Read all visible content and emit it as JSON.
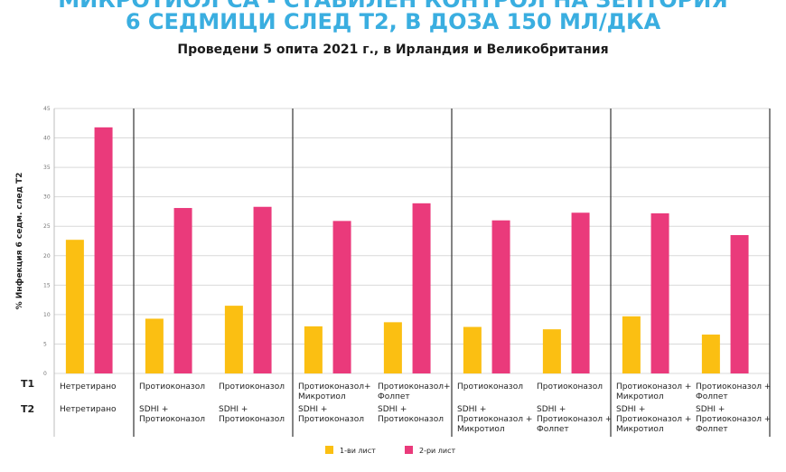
{
  "chart_data": {
    "type": "bar",
    "title_line1": "МИКРОТИОЛ СА - СТАБИЛЕН КОНТРОЛ НА ЗЕПТОРИЯ",
    "title_line2": "6 СЕДМИЦИ СЛЕД Т2, В ДОЗА 150 МЛ/ДКА",
    "subtitle": "Проведени 5 опита 2021 г., в Ирландия и Великобритания",
    "ylabel": "% Инфекция 6 седм. след Т2",
    "ylim": [
      0,
      45
    ],
    "yticks": [
      "0",
      "5",
      "10",
      "15",
      "20",
      "25",
      "30",
      "35",
      "40",
      "45"
    ],
    "row_labels": [
      "Т1",
      "Т2"
    ],
    "categories": [
      {
        "t1": [
          "Нетретирано"
        ],
        "t2": [
          "Нетретирано"
        ]
      },
      {
        "t1": [
          "Протиоконазол"
        ],
        "t2": [
          "SDHI +",
          "Протиоконазол"
        ]
      },
      {
        "t1": [
          "Протиоконазол"
        ],
        "t2": [
          "SDHI +",
          "Протиоконазол"
        ]
      },
      {
        "t1": [
          "Протиоконазол+",
          "Микротиол"
        ],
        "t2": [
          "SDHI +",
          "Протиоконазол"
        ]
      },
      {
        "t1": [
          "Протиоконазол+",
          "Фолпет"
        ],
        "t2": [
          "SDHI +",
          "Протиоконазол"
        ]
      },
      {
        "t1": [
          "Протиоконазол"
        ],
        "t2": [
          "SDHI +",
          "Протиоконазол +",
          "Микротиол"
        ]
      },
      {
        "t1": [
          "Протиоконазол"
        ],
        "t2": [
          "SDHI +",
          "Протиоконазол +",
          "Фолпет"
        ]
      },
      {
        "t1": [
          "Протиоконазол +",
          "Микротиол"
        ],
        "t2": [
          "SDHI +",
          "Протиоконазол +",
          "Микротиол"
        ]
      },
      {
        "t1": [
          "Протиоконазол +",
          "Фолпет"
        ],
        "t2": [
          "SDHI +",
          "Протиоконазол +",
          "Фолпет"
        ]
      }
    ],
    "group_separators_after": [
      0,
      2,
      4,
      6
    ],
    "series": [
      {
        "name": "1-ви лист",
        "color": "#fbbf12",
        "values": [
          22.7,
          9.3,
          11.5,
          8.0,
          8.7,
          7.9,
          7.5,
          9.7,
          6.6
        ]
      },
      {
        "name": "2-ри лист",
        "color": "#ea3a7b",
        "values": [
          41.8,
          28.1,
          28.3,
          25.9,
          28.9,
          26.0,
          27.3,
          27.2,
          23.5
        ]
      }
    ],
    "grid": true,
    "legend_position": "bottom"
  }
}
